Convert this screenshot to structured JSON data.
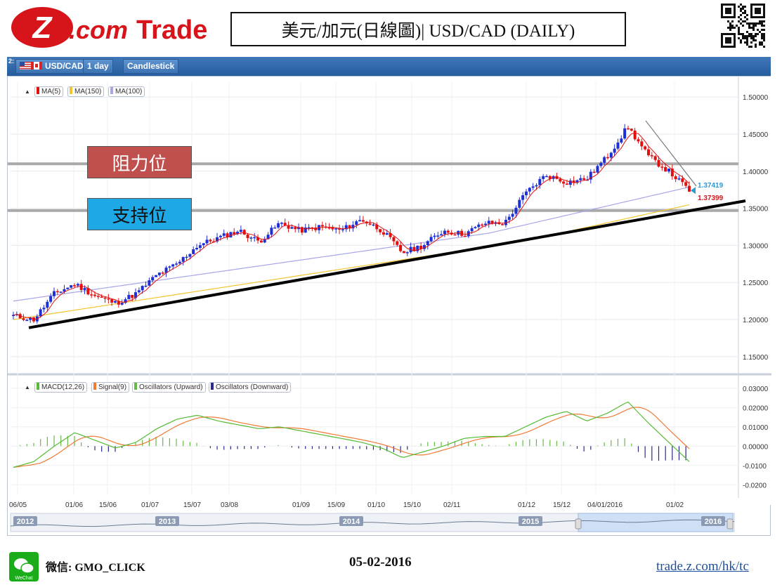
{
  "header": {
    "logo_text": "Z.com Trade",
    "title": "美元/加元(日線圖)| USD/CAD  (DAILY)"
  },
  "toolbar": {
    "panel_number": "2:",
    "symbol": "USD/CAD",
    "period": "1 day",
    "chart_type": "Candlestick"
  },
  "main_legend": [
    "MA(5)",
    "MA(150)",
    "MA(100)"
  ],
  "macd_legend": [
    "MACD(12,26)",
    "Signal(9)",
    "Oscillators (Upward)",
    "Oscillators (Downward)"
  ],
  "annotations": {
    "resistance": "阻力位",
    "support": "支持位",
    "price_label_1": "1.37419",
    "price_label_2": "1.37399"
  },
  "colors": {
    "accent_red": "#d7141a",
    "candle_up": "#1f2fd6",
    "candle_down": "#e01010",
    "ma5": "#e01010",
    "ma150": "#f4c530",
    "ma100": "#a7a6e8",
    "macd": "#55bb33",
    "signal": "#f07a36",
    "osc_up": "#66bb44",
    "osc_down": "#2a2a8a",
    "resistance_box": "#c0504d",
    "support_box": "#1ea8e6"
  },
  "chart_data": {
    "type": "candlestick",
    "symbol": "USD/CAD",
    "period": "1 day",
    "y_ticks": [
      "1.50000",
      "1.45000",
      "1.40000",
      "1.35000",
      "1.30000",
      "1.25000",
      "1.20000",
      "1.15000"
    ],
    "ylim": [
      1.13,
      1.52
    ],
    "x_ticks": [
      "06/05",
      "01/06",
      "15/06",
      "01/07",
      "15/07",
      "03/08",
      "01/09",
      "15/09",
      "01/10",
      "15/10",
      "02/11",
      "01/12",
      "15/12",
      "04/01/2016",
      "01/02"
    ],
    "approx_close_path": [
      1.205,
      1.2,
      1.235,
      1.248,
      1.232,
      1.222,
      1.235,
      1.26,
      1.275,
      1.3,
      1.31,
      1.32,
      1.305,
      1.33,
      1.32,
      1.325,
      1.32,
      1.335,
      1.32,
      1.29,
      1.3,
      1.32,
      1.315,
      1.33,
      1.33,
      1.37,
      1.395,
      1.385,
      1.39,
      1.42,
      1.46,
      1.42,
      1.4,
      1.374
    ],
    "resistance_level": 1.41,
    "support_level": 1.347,
    "last_prices": [
      "1.37419",
      "1.37399"
    ],
    "macd_y_ticks": [
      "0.03000",
      "0.02000",
      "0.01000",
      "0.00000",
      "-0.0100",
      "-0.0200"
    ],
    "macd_ylim": [
      -0.025,
      0.035
    ],
    "navigator_years": [
      "2012",
      "2013",
      "2014",
      "2015",
      "2016"
    ]
  },
  "footer": {
    "wechat_label": "WeChat",
    "wechat_id": "微信: GMO_CLICK",
    "date": "05-02-2016",
    "url": "trade.z.com/hk/tc"
  }
}
